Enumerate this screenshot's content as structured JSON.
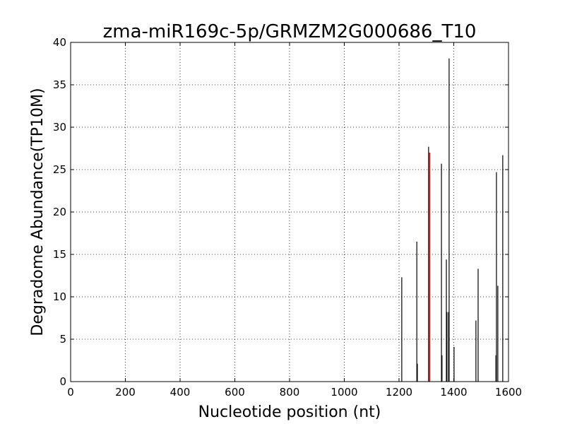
{
  "chart_data": {
    "type": "stem",
    "title": "zma-miR169c-5p/GRMZM2G000686_T10",
    "x_label": "Nucleotide position (nt)",
    "y_label": "Degradome Abundance(TP10M)",
    "series": [
      {
        "color": "#000000",
        "x": [
          1210,
          1265,
          1267,
          1308,
          1355,
          1357,
          1373,
          1375,
          1381,
          1383,
          1401,
          1481,
          1489,
          1554,
          1556,
          1561,
          1579
        ],
        "values": [
          12.3,
          16.5,
          2.1,
          27.7,
          25.7,
          3.1,
          14.4,
          8.2,
          8.2,
          38.1,
          4.1,
          7.2,
          13.3,
          3.1,
          24.7,
          11.3,
          26.7
        ]
      },
      {
        "color": "#ff0000",
        "x": [
          1311
        ],
        "values": [
          27.0
        ]
      }
    ],
    "xlim": [
      0,
      1600
    ],
    "xticks": [
      0,
      200,
      400,
      600,
      800,
      1000,
      1200,
      1400,
      1600
    ],
    "ylim": [
      0,
      40
    ],
    "yticks": [
      0,
      5,
      10,
      15,
      20,
      25,
      30,
      35,
      40
    ],
    "grid": true
  }
}
